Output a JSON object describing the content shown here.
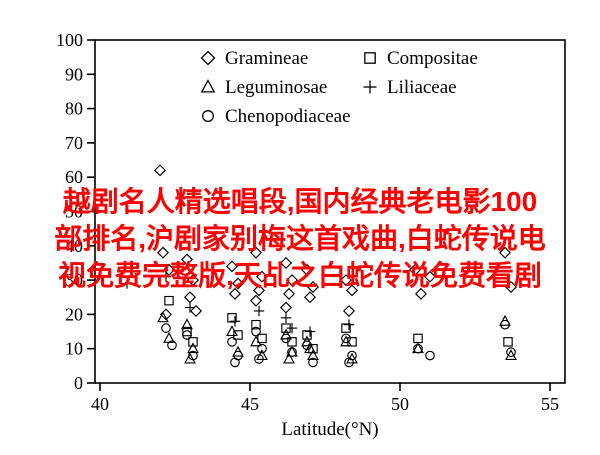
{
  "watermark": {
    "color": "#ff0000",
    "lines": [
      "越剧名人精选唱段,国内经典老电影100",
      "部排名,沪剧家别梅这首戏曲,白蛇传说电",
      "视免费完整版,天乩之白蛇传说免费看剧"
    ]
  },
  "chart_data": {
    "type": "scatter",
    "title": "",
    "xlabel": "Latitude(°N)",
    "ylabel": "",
    "xlim": [
      40,
      55
    ],
    "ylim": [
      0,
      100
    ],
    "x_ticks": [
      40,
      45,
      50,
      55
    ],
    "y_ticks": [
      0,
      10,
      20,
      30,
      40,
      50,
      60,
      70,
      80,
      90,
      100
    ],
    "grid": false,
    "legend_position": "top-inside",
    "series": [
      {
        "name": "Gramineae",
        "marker": "diamond",
        "points": [
          [
            42.0,
            62
          ],
          [
            42.1,
            38
          ],
          [
            42.3,
            33
          ],
          [
            42.2,
            20
          ],
          [
            42.9,
            36
          ],
          [
            43.1,
            30
          ],
          [
            43.0,
            25
          ],
          [
            43.2,
            21
          ],
          [
            44.4,
            34
          ],
          [
            44.6,
            29
          ],
          [
            44.5,
            26
          ],
          [
            45.2,
            38
          ],
          [
            45.4,
            31
          ],
          [
            45.3,
            27
          ],
          [
            45.2,
            24
          ],
          [
            46.2,
            35
          ],
          [
            46.4,
            30
          ],
          [
            46.3,
            26
          ],
          [
            46.2,
            22
          ],
          [
            46.9,
            33
          ],
          [
            47.1,
            28
          ],
          [
            47.0,
            25
          ],
          [
            48.2,
            30
          ],
          [
            48.4,
            27
          ],
          [
            48.3,
            21
          ],
          [
            50.5,
            33
          ],
          [
            50.7,
            26
          ],
          [
            51.0,
            31
          ],
          [
            53.5,
            38
          ],
          [
            53.7,
            28
          ]
        ]
      },
      {
        "name": "Compositae",
        "marker": "square",
        "points": [
          [
            42.3,
            24
          ],
          [
            42.9,
            15
          ],
          [
            43.1,
            12
          ],
          [
            44.4,
            19
          ],
          [
            44.6,
            14
          ],
          [
            45.2,
            17
          ],
          [
            45.4,
            13
          ],
          [
            46.2,
            16
          ],
          [
            46.4,
            12
          ],
          [
            46.9,
            14
          ],
          [
            47.1,
            10
          ],
          [
            48.2,
            16
          ],
          [
            48.4,
            12
          ],
          [
            50.6,
            13
          ],
          [
            53.6,
            12
          ]
        ]
      },
      {
        "name": "Leguminosae",
        "marker": "triangle",
        "points": [
          [
            42.1,
            19
          ],
          [
            42.3,
            13
          ],
          [
            42.9,
            17
          ],
          [
            43.1,
            10
          ],
          [
            43.0,
            7
          ],
          [
            44.4,
            15
          ],
          [
            44.6,
            9
          ],
          [
            45.2,
            12
          ],
          [
            45.4,
            8
          ],
          [
            46.2,
            14
          ],
          [
            46.4,
            9
          ],
          [
            46.3,
            7
          ],
          [
            46.9,
            12
          ],
          [
            47.1,
            8
          ],
          [
            47.0,
            10
          ],
          [
            48.2,
            12
          ],
          [
            48.4,
            7
          ],
          [
            50.6,
            10
          ],
          [
            53.5,
            18
          ],
          [
            53.7,
            8
          ]
        ]
      },
      {
        "name": "Liliaceae",
        "marker": "plus",
        "points": [
          [
            40.9,
            29
          ],
          [
            42.2,
            31
          ],
          [
            43.0,
            22
          ],
          [
            44.5,
            18
          ],
          [
            45.3,
            21
          ],
          [
            46.2,
            19
          ],
          [
            46.4,
            16
          ],
          [
            47.0,
            15
          ],
          [
            48.3,
            17
          ]
        ]
      },
      {
        "name": "Chenopodiaceae",
        "marker": "circle",
        "points": [
          [
            42.2,
            16
          ],
          [
            42.4,
            11
          ],
          [
            42.9,
            14
          ],
          [
            43.1,
            8
          ],
          [
            44.4,
            12
          ],
          [
            44.6,
            8
          ],
          [
            44.5,
            6
          ],
          [
            45.2,
            15
          ],
          [
            45.4,
            10
          ],
          [
            45.3,
            7
          ],
          [
            46.2,
            13
          ],
          [
            46.4,
            9
          ],
          [
            46.9,
            11
          ],
          [
            47.1,
            6
          ],
          [
            48.2,
            13
          ],
          [
            48.4,
            8
          ],
          [
            48.3,
            6
          ],
          [
            50.6,
            10
          ],
          [
            51.0,
            8
          ],
          [
            53.5,
            17
          ],
          [
            53.7,
            9
          ]
        ]
      }
    ]
  }
}
